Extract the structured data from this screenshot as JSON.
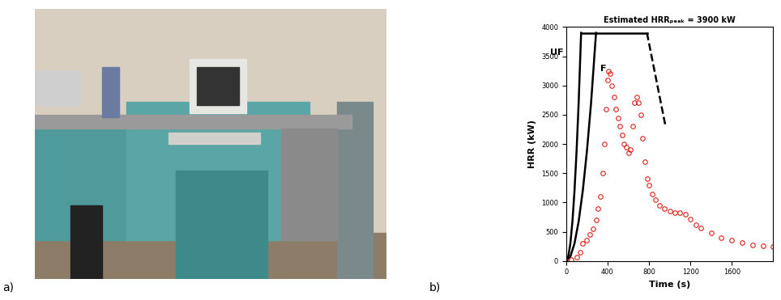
{
  "panel_labels": [
    "a)",
    "b)"
  ],
  "chart_data": {
    "type": "line",
    "annotation": "Estimated HRRₚₑₐₖ = 3900 kW",
    "x_label": "Time (s)",
    "y_label": "HRR (kW)",
    "xlim": [
      0,
      2000
    ],
    "xticks": [
      0,
      400,
      800,
      1200,
      1600
    ],
    "ylim": [
      0,
      4000
    ],
    "yticks": [
      0,
      500,
      1000,
      1500,
      2000,
      2500,
      3000,
      3500,
      4000
    ],
    "grid": false,
    "series": [
      {
        "name": "UF",
        "color": "#000000",
        "line_style": "solid",
        "x": [
          0,
          20,
          40,
          60,
          80,
          100,
          120,
          144
        ],
        "values": [
          0,
          75,
          300,
          675,
          1200,
          1876,
          2701,
          3900
        ]
      },
      {
        "name": "F",
        "color": "#000000",
        "line_style": "solid",
        "x": [
          0,
          40,
          80,
          120,
          160,
          200,
          240,
          288
        ],
        "values": [
          0,
          75,
          300,
          675,
          1201,
          1876,
          2701,
          3900
        ]
      },
      {
        "color": "#000000",
        "line_style": "solid",
        "x": [
          144,
          780
        ],
        "values": [
          3900,
          3900
        ]
      },
      {
        "color": "#000000",
        "line_style": "dashed",
        "x": [
          780,
          960
        ],
        "values": [
          3900,
          2300
        ]
      },
      {
        "color": "#e0201b",
        "line_style": "none",
        "marker": "o",
        "x": [
          0,
          50,
          100,
          130,
          160,
          200,
          230,
          260,
          290,
          310,
          330,
          350,
          370,
          385,
          400,
          410,
          420,
          440,
          460,
          480,
          500,
          520,
          540,
          560,
          580,
          600,
          620,
          640,
          660,
          680,
          700,
          720,
          740,
          760,
          780,
          800,
          830,
          860,
          900,
          950,
          1000,
          1050,
          1100,
          1150,
          1200,
          1250,
          1300,
          1400,
          1500,
          1600,
          1700,
          1800,
          1900,
          2000
        ],
        "values": [
          0,
          20,
          60,
          150,
          300,
          350,
          450,
          550,
          700,
          900,
          1100,
          1500,
          2000,
          2600,
          3100,
          3250,
          3200,
          3000,
          2800,
          2600,
          2450,
          2300,
          2150,
          2000,
          1950,
          1850,
          1900,
          2300,
          2700,
          2800,
          2700,
          2500,
          2100,
          1700,
          1400,
          1300,
          1150,
          1050,
          950,
          900,
          850,
          820,
          830,
          800,
          720,
          620,
          560,
          480,
          400,
          350,
          310,
          280,
          260,
          240
        ]
      }
    ]
  }
}
